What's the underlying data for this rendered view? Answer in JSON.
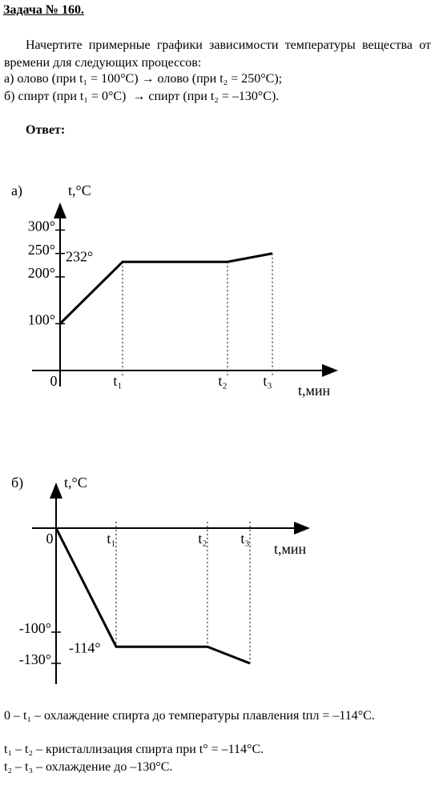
{
  "header": {
    "title": "Задача № 160."
  },
  "task": {
    "lines": [
      "Начертите примерные графики зависимости температуры вещества от времени для следующих процессов:",
      "а) олово (при t₁ = 100°C) → олово (при t₂ = 250°C);",
      "б) спирт (при t₁ = 0°C)  → спирт (при t₂ = –130°C)."
    ]
  },
  "answer_label": "Ответ:",
  "graphs": [
    {
      "label": "а)",
      "y_axis_label": "t,°C",
      "x_axis_label": "t,мин",
      "x_labels": [
        "0",
        "t₁",
        "t₂",
        "t₃"
      ],
      "values": [
        100,
        232,
        232,
        250
      ],
      "annotation": "232°",
      "yticks": [
        {
          "value": 100,
          "label": "100°"
        },
        {
          "value": 200,
          "label": "200°"
        },
        {
          "value": 250,
          "label": "250°"
        },
        {
          "value": 300,
          "label": "300°"
        }
      ]
    },
    {
      "label": "б)",
      "y_axis_label": "t,°C",
      "x_axis_label": "t,мин",
      "x_labels": [
        "0",
        "t₁",
        "t₂",
        "t₃"
      ],
      "values": [
        0,
        -114,
        -114,
        -130
      ],
      "annotation": "-114°",
      "yticks": [
        {
          "value": -100,
          "label": "-100°"
        },
        {
          "value": -130,
          "label": "-130°"
        }
      ]
    }
  ],
  "explanation": {
    "lines": [
      "0 – t₁ – охлаждение спирта до температуры плавления tпл = –114°C.",
      "t₁ – t₂ – кристаллизация спирта при t° = –114°C.",
      "t₂ – t₃ – охлаждение до –130°C."
    ]
  }
}
